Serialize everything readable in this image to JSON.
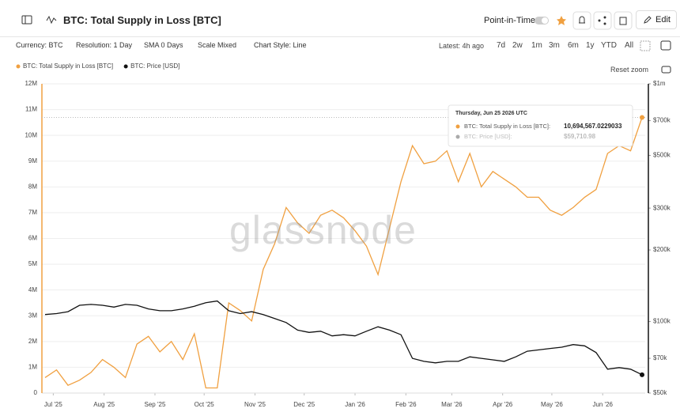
{
  "header": {
    "title": "BTC: Total Supply in Loss [BTC]",
    "point_in_time": "Point-in-Time",
    "edit": "Edit"
  },
  "toolbar": {
    "filters": [
      "Currency: BTC",
      "Resolution: 1 Day",
      "SMA 0 Days",
      "Scale Mixed",
      "Chart Style: Line"
    ],
    "latest": "Latest: 4h ago",
    "ranges": [
      "7d",
      "2w",
      "1m",
      "3m",
      "6m",
      "1y",
      "YTD",
      "All"
    ],
    "reset_zoom": "Reset zoom"
  },
  "watermark": "glassnode",
  "tooltip": {
    "date": "Thursday, Jun 25 2026 UTC",
    "items": [
      {
        "label": "BTC: Total Supply in Loss [BTC]:",
        "value_label": "10,694,567.0229033",
        "color": "#f0a040"
      },
      {
        "label": "BTC: Price [USD]:",
        "value_label": "$59,710.98",
        "color": "#aaaaaa"
      }
    ]
  },
  "chart_data": {
    "type": "line",
    "x": [
      "2025-06-26",
      "2025-07-03",
      "2025-07-10",
      "2025-07-17",
      "2025-07-24",
      "2025-07-31",
      "2025-08-07",
      "2025-08-14",
      "2025-08-21",
      "2025-08-28",
      "2025-09-04",
      "2025-09-11",
      "2025-09-18",
      "2025-09-25",
      "2025-10-02",
      "2025-10-09",
      "2025-10-16",
      "2025-10-23",
      "2025-10-30",
      "2025-11-06",
      "2025-11-13",
      "2025-11-20",
      "2025-11-27",
      "2025-12-04",
      "2025-12-11",
      "2025-12-18",
      "2025-12-25",
      "2026-01-01",
      "2026-01-08",
      "2026-01-15",
      "2026-01-22",
      "2026-01-29",
      "2026-02-05",
      "2026-02-12",
      "2026-02-19",
      "2026-02-26",
      "2026-03-05",
      "2026-03-12",
      "2026-03-19",
      "2026-03-26",
      "2026-04-02",
      "2026-04-09",
      "2026-04-16",
      "2026-04-23",
      "2026-04-30",
      "2026-05-07",
      "2026-05-14",
      "2026-05-21",
      "2026-05-28",
      "2026-06-04",
      "2026-06-11",
      "2026-06-18",
      "2026-06-25"
    ],
    "xlim": [
      "2025-06-26",
      "2026-06-25"
    ],
    "xticks": [
      {
        "value": "2025-07-01",
        "label": "Jul '25"
      },
      {
        "value": "2025-08-01",
        "label": "Aug '25"
      },
      {
        "value": "2025-09-01",
        "label": "Sep '25"
      },
      {
        "value": "2025-10-01",
        "label": "Oct '25"
      },
      {
        "value": "2025-11-01",
        "label": "Nov '25"
      },
      {
        "value": "2025-12-01",
        "label": "Dec '25"
      },
      {
        "value": "2026-01-01",
        "label": "Jan '26"
      },
      {
        "value": "2026-02-01",
        "label": "Feb '26"
      },
      {
        "value": "2026-03-01",
        "label": "Mar '26"
      },
      {
        "value": "2026-04-01",
        "label": "Apr '26"
      },
      {
        "value": "2026-05-01",
        "label": "May '26"
      },
      {
        "value": "2026-06-01",
        "label": "Jun '26"
      }
    ],
    "ylim": [
      0,
      12000000
    ],
    "yticks": [
      0,
      {
        "value": 1000000,
        "label": "1M"
      },
      {
        "value": 2000000,
        "label": "2M"
      },
      {
        "value": 3000000,
        "label": "3M"
      },
      {
        "value": 4000000,
        "label": "4M"
      },
      {
        "value": 5000000,
        "label": "5M"
      },
      {
        "value": 6000000,
        "label": "6M"
      },
      {
        "value": 7000000,
        "label": "7M"
      },
      {
        "value": 8000000,
        "label": "8M"
      },
      {
        "value": 9000000,
        "label": "9M"
      },
      {
        "value": 10000000,
        "label": "10M"
      },
      {
        "value": 11000000,
        "label": "11M"
      },
      {
        "value": 12000000,
        "label": "12M"
      }
    ],
    "y2lim": [
      50000,
      1000000
    ],
    "y2scale": "log",
    "y2ticks": [
      {
        "value": 50000,
        "label": "$50k"
      },
      {
        "value": 70000,
        "label": "$70k"
      },
      {
        "value": 100000,
        "label": "$100k"
      },
      {
        "value": 200000,
        "label": "$200k"
      },
      {
        "value": 300000,
        "label": "$300k"
      },
      {
        "value": 500000,
        "label": "$500k"
      },
      {
        "value": 700000,
        "label": "$700k"
      },
      {
        "value": 1000000,
        "label": "$1m"
      }
    ],
    "grid": true,
    "series": [
      {
        "name": "BTC: Total Supply in Loss [BTC]",
        "color": "#f0a040",
        "values": [
          600000,
          900000,
          300000,
          500000,
          800000,
          1300000,
          1000000,
          600000,
          1900000,
          2200000,
          1600000,
          2000000,
          1300000,
          2300000,
          200000,
          200000,
          3500000,
          3200000,
          2800000,
          4800000,
          5800000,
          7200000,
          6600000,
          6200000,
          6900000,
          7100000,
          6800000,
          6300000,
          5700000,
          4600000,
          6400000,
          8200000,
          9600000,
          8900000,
          9000000,
          9400000,
          8200000,
          9300000,
          8000000,
          8600000,
          8300000,
          8000000,
          7600000,
          7600000,
          7100000,
          6900000,
          7200000,
          7600000,
          7900000,
          9300000,
          9600000,
          9400000,
          10694567.0229033
        ]
      },
      {
        "name": "BTC: Price [USD]",
        "color": "#111111",
        "axis": "y2",
        "values": [
          107000,
          108000,
          110000,
          117000,
          118000,
          117000,
          115000,
          118000,
          117000,
          113000,
          111000,
          111000,
          113000,
          116000,
          120000,
          122000,
          111000,
          108000,
          110000,
          107000,
          103000,
          99000,
          92000,
          90000,
          91000,
          87000,
          88000,
          87000,
          91000,
          95000,
          92000,
          88000,
          70000,
          68000,
          67000,
          68000,
          68000,
          71000,
          70000,
          69000,
          68000,
          71000,
          75000,
          76000,
          77000,
          78000,
          80000,
          79000,
          74000,
          63000,
          64000,
          63000,
          59710.98
        ]
      }
    ]
  }
}
